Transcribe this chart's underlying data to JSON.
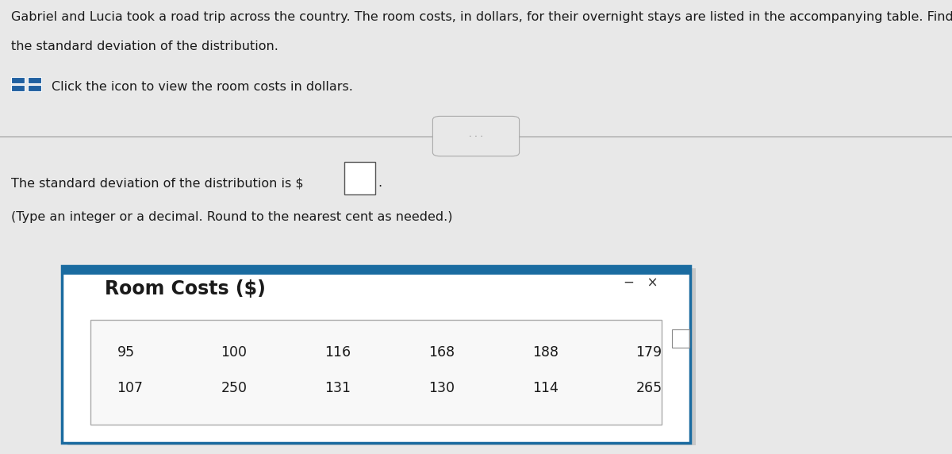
{
  "background_color": "#e8e8e8",
  "main_text_line1": "Gabriel and Lucia took a road trip across the country. The room costs, in dollars, for their overnight stays are listed in the accompanying table. Find",
  "main_text_line2": "the standard deviation of the distribution.",
  "icon_text": "Click the icon to view the room costs in dollars.",
  "answer_text_pre": "The standard deviation of the distribution is $",
  "answer_text_post": ".",
  "note_text": "(Type an integer or a decimal. Round to the nearest cent as needed.)",
  "popup_title": "Room Costs ($)",
  "popup_border_color": "#1a6ba0",
  "popup_bg_color": "#ffffff",
  "popup_shadow_color": "#aaaaaa",
  "table_border_color": "#aaaaaa",
  "row1": [
    95,
    100,
    116,
    168,
    188,
    179
  ],
  "row2": [
    107,
    250,
    131,
    130,
    114,
    265
  ],
  "divider_color": "#999999",
  "dots_button_color": "#e8e8e8",
  "dots_button_border": "#aaaaaa",
  "minimize_x_color": "#333333",
  "input_box_color": "#ffffff",
  "input_box_border": "#555555",
  "text_color": "#1a1a1a",
  "icon_color": "#2060a0"
}
